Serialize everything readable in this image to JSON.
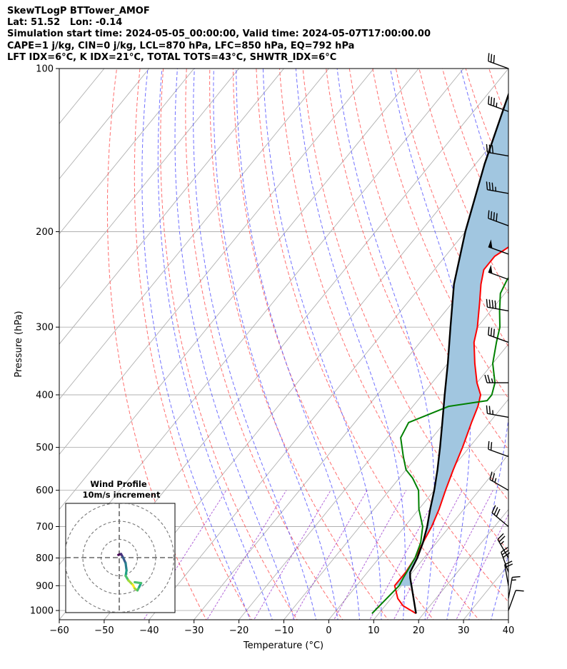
{
  "header": {
    "lines": [
      "SkewTLogP BTTower_AMOF",
      "Lat: 51.52   Lon: -0.14",
      "Simulation start time: 2024-05-05_00:00:00, Valid time: 2024-05-07T17:00:00.00",
      "CAPE=1 j/kg, CIN=0 j/kg, LCL=870 hPa, LFC=850 hPa, EQ=792 hPa",
      "LFT IDX=6°C, K IDX=21°C, TOTAL TOTS=43°C, SHWTR_IDX=6°C"
    ]
  },
  "chart_data": {
    "type": "line",
    "xlabel": "Temperature (°C)",
    "ylabel": "Pressure (hPa)",
    "xlim": [
      -60,
      40
    ],
    "ylim": [
      1040,
      100
    ],
    "y_scale": "log",
    "grid": true,
    "x_ticks": [
      -60,
      -50,
      -40,
      -30,
      -20,
      -10,
      0,
      10,
      20,
      30,
      40
    ],
    "y_ticks": [
      100,
      200,
      300,
      400,
      500,
      600,
      700,
      800,
      900,
      1000
    ],
    "colors": {
      "temperature": "#ff0000",
      "dewpoint": "#008000",
      "parcel": "#000000",
      "cape_fill": "#a1c6e0",
      "dry_adiabats": "#ff5555",
      "moist_adiabats": "#4d4dff",
      "mixing_ratio": "#8000c0",
      "isotherms": "#b0b0b0"
    },
    "series": [
      {
        "name": "temperature",
        "points": [
          [
            1013,
            18.3
          ],
          [
            980,
            14
          ],
          [
            950,
            11.5
          ],
          [
            900,
            8.5
          ],
          [
            850,
            8.5
          ],
          [
            800,
            8
          ],
          [
            750,
            7
          ],
          [
            700,
            6
          ],
          [
            650,
            4.5
          ],
          [
            600,
            2.5
          ],
          [
            550,
            0.5
          ],
          [
            500,
            -1.5
          ],
          [
            450,
            -4
          ],
          [
            420,
            -5.5
          ],
          [
            400,
            -7
          ],
          [
            380,
            -10
          ],
          [
            350,
            -14
          ],
          [
            320,
            -18
          ],
          [
            300,
            -20
          ],
          [
            270,
            -24
          ],
          [
            250,
            -27
          ],
          [
            235,
            -29
          ],
          [
            222,
            -29
          ],
          [
            210,
            -27
          ],
          [
            200,
            -26
          ],
          [
            185,
            -25.5
          ],
          [
            170,
            -26
          ],
          [
            160,
            -25.5
          ],
          [
            150,
            -23
          ],
          [
            140,
            -21
          ],
          [
            130,
            -18
          ],
          [
            120,
            -15
          ],
          [
            110,
            -12
          ],
          [
            100,
            -10
          ]
        ]
      },
      {
        "name": "dewpoint",
        "points": [
          [
            1013,
            8.5
          ],
          [
            900,
            9.5
          ],
          [
            870,
            9
          ],
          [
            800,
            8
          ],
          [
            750,
            6.5
          ],
          [
            700,
            4
          ],
          [
            650,
            0
          ],
          [
            600,
            -3.5
          ],
          [
            570,
            -7
          ],
          [
            550,
            -10
          ],
          [
            520,
            -13
          ],
          [
            480,
            -17
          ],
          [
            450,
            -18
          ],
          [
            420,
            -12
          ],
          [
            410,
            -4.5
          ],
          [
            400,
            -4.5
          ],
          [
            380,
            -6
          ],
          [
            350,
            -10
          ],
          [
            320,
            -13
          ],
          [
            300,
            -15
          ],
          [
            280,
            -18
          ],
          [
            260,
            -21
          ],
          [
            245,
            -22
          ],
          [
            230,
            -22
          ],
          [
            215,
            -21
          ],
          [
            200,
            -20
          ],
          [
            185,
            -20
          ],
          [
            170,
            -20
          ],
          [
            160,
            -22
          ],
          [
            150,
            -24
          ],
          [
            140,
            -19
          ],
          [
            130,
            -16
          ],
          [
            120,
            -12
          ],
          [
            110,
            -8
          ],
          [
            100,
            -5
          ]
        ]
      },
      {
        "name": "parcel",
        "points": [
          [
            1013,
            18.3
          ],
          [
            870,
            10.5
          ],
          [
            850,
            9.5
          ],
          [
            800,
            8.5
          ],
          [
            750,
            7
          ],
          [
            700,
            5
          ],
          [
            650,
            2.5
          ],
          [
            600,
            0
          ],
          [
            550,
            -3
          ],
          [
            500,
            -6.5
          ],
          [
            450,
            -10.5
          ],
          [
            400,
            -15
          ],
          [
            350,
            -20
          ],
          [
            300,
            -26
          ],
          [
            250,
            -33
          ],
          [
            200,
            -40
          ],
          [
            150,
            -48
          ],
          [
            100,
            -58
          ]
        ]
      }
    ],
    "wind_barbs": {
      "units": "knots",
      "levels_hpa": [
        100,
        120,
        145,
        170,
        195,
        220,
        245,
        280,
        320,
        380,
        440,
        520,
        600,
        700,
        800,
        850,
        900,
        950,
        1000
      ],
      "speed_kt": [
        30,
        35,
        30,
        35,
        40,
        50,
        50,
        40,
        30,
        25,
        25,
        20,
        25,
        30,
        25,
        30,
        20,
        15,
        10
      ],
      "dir_deg": [
        290,
        290,
        280,
        280,
        290,
        290,
        290,
        280,
        290,
        270,
        280,
        290,
        300,
        310,
        330,
        340,
        350,
        10,
        20
      ]
    },
    "hodograph": {
      "title": "Wind Profile",
      "subtitle": "10m/s increment",
      "ring_step_ms": 10,
      "u_ms": [
        -0.5,
        1.0,
        2.0,
        3.5,
        4.0,
        3.5,
        5.0,
        7.5,
        8.5,
        10.0,
        11.0,
        12.0,
        8.5
      ],
      "v_ms": [
        1.5,
        2.0,
        0.2,
        -3.0,
        -7.0,
        -10.0,
        -12.5,
        -15.0,
        -17.0,
        -18.0,
        -16.0,
        -14.0,
        -13.5
      ]
    }
  }
}
